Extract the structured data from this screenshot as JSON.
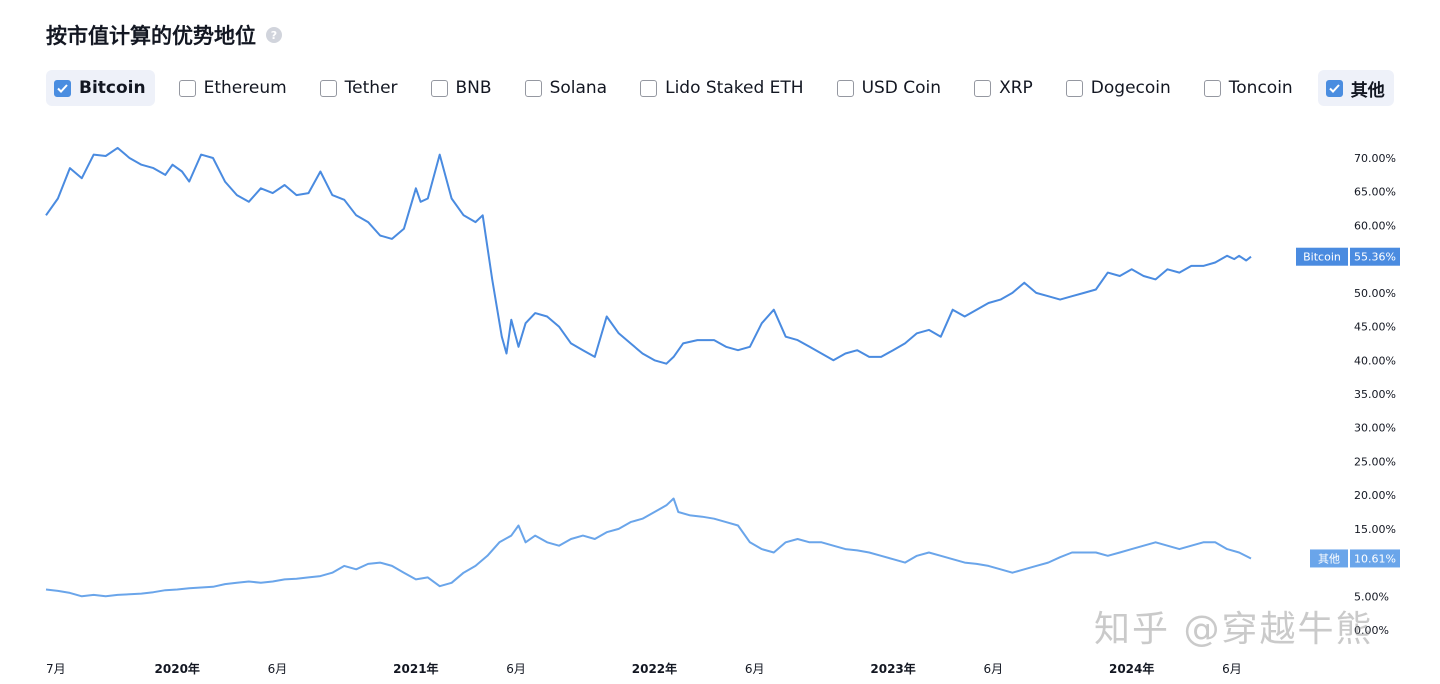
{
  "header": {
    "title": "按市值计算的优势地位",
    "help_icon": "?"
  },
  "legend": {
    "items": [
      {
        "label": "Bitcoin",
        "checked": true
      },
      {
        "label": "Ethereum",
        "checked": false
      },
      {
        "label": "Tether",
        "checked": false
      },
      {
        "label": "BNB",
        "checked": false
      },
      {
        "label": "Solana",
        "checked": false
      },
      {
        "label": "Lido Staked ETH",
        "checked": false
      },
      {
        "label": "USD Coin",
        "checked": false
      },
      {
        "label": "XRP",
        "checked": false
      },
      {
        "label": "Dogecoin",
        "checked": false
      },
      {
        "label": "Toncoin",
        "checked": false
      },
      {
        "label": "其他",
        "checked": true
      }
    ]
  },
  "watermark": "知乎 @穿越牛熊",
  "chart_data": {
    "type": "line",
    "title": "按市值计算的优势地位",
    "x_start": 2019.45,
    "x_end": 2024.5,
    "y_range": [
      0.0,
      70.0
    ],
    "y_ticks": [
      "70.00%",
      "65.00%",
      "60.00%",
      "55.00%",
      "50.00%",
      "45.00%",
      "40.00%",
      "35.00%",
      "30.00%",
      "25.00%",
      "20.00%",
      "15.00%",
      "10.00%",
      "5.00%",
      "0.00%"
    ],
    "x_ticks": [
      {
        "label": "7月",
        "t": 2019.5,
        "year": false
      },
      {
        "label": "2020年",
        "t": 2020.0,
        "year": true
      },
      {
        "label": "6月",
        "t": 2020.42,
        "year": false
      },
      {
        "label": "2021年",
        "t": 2021.0,
        "year": true
      },
      {
        "label": "6月",
        "t": 2021.42,
        "year": false
      },
      {
        "label": "2022年",
        "t": 2022.0,
        "year": true
      },
      {
        "label": "6月",
        "t": 2022.42,
        "year": false
      },
      {
        "label": "2023年",
        "t": 2023.0,
        "year": true
      },
      {
        "label": "6月",
        "t": 2023.42,
        "year": false
      },
      {
        "label": "2024年",
        "t": 2024.0,
        "year": true
      },
      {
        "label": "6月",
        "t": 2024.42,
        "year": false
      }
    ],
    "series": [
      {
        "name": "Bitcoin",
        "color": "#4a8be0",
        "last_value_label": "55.36%",
        "points": [
          [
            2019.45,
            61.5
          ],
          [
            2019.5,
            64.0
          ],
          [
            2019.55,
            68.5
          ],
          [
            2019.6,
            67.0
          ],
          [
            2019.65,
            70.5
          ],
          [
            2019.7,
            70.3
          ],
          [
            2019.75,
            71.5
          ],
          [
            2019.8,
            70.0
          ],
          [
            2019.85,
            69.0
          ],
          [
            2019.9,
            68.5
          ],
          [
            2019.95,
            67.5
          ],
          [
            2019.98,
            69.0
          ],
          [
            2020.02,
            68.0
          ],
          [
            2020.05,
            66.5
          ],
          [
            2020.1,
            70.5
          ],
          [
            2020.15,
            70.0
          ],
          [
            2020.2,
            66.5
          ],
          [
            2020.25,
            64.5
          ],
          [
            2020.3,
            63.5
          ],
          [
            2020.35,
            65.5
          ],
          [
            2020.4,
            64.8
          ],
          [
            2020.45,
            66.0
          ],
          [
            2020.5,
            64.5
          ],
          [
            2020.55,
            64.8
          ],
          [
            2020.6,
            68.0
          ],
          [
            2020.65,
            64.5
          ],
          [
            2020.7,
            63.8
          ],
          [
            2020.75,
            61.5
          ],
          [
            2020.8,
            60.5
          ],
          [
            2020.85,
            58.5
          ],
          [
            2020.9,
            58.0
          ],
          [
            2020.95,
            59.5
          ],
          [
            2021.0,
            65.5
          ],
          [
            2021.02,
            63.5
          ],
          [
            2021.05,
            64.0
          ],
          [
            2021.1,
            70.5
          ],
          [
            2021.15,
            64.0
          ],
          [
            2021.2,
            61.5
          ],
          [
            2021.25,
            60.5
          ],
          [
            2021.28,
            61.5
          ],
          [
            2021.32,
            52.0
          ],
          [
            2021.36,
            43.5
          ],
          [
            2021.38,
            41.0
          ],
          [
            2021.4,
            46.0
          ],
          [
            2021.43,
            42.0
          ],
          [
            2021.46,
            45.5
          ],
          [
            2021.5,
            47.0
          ],
          [
            2021.55,
            46.5
          ],
          [
            2021.6,
            45.0
          ],
          [
            2021.65,
            42.5
          ],
          [
            2021.7,
            41.5
          ],
          [
            2021.75,
            40.5
          ],
          [
            2021.8,
            46.5
          ],
          [
            2021.85,
            44.0
          ],
          [
            2021.9,
            42.5
          ],
          [
            2021.95,
            41.0
          ],
          [
            2022.0,
            40.0
          ],
          [
            2022.05,
            39.5
          ],
          [
            2022.08,
            40.5
          ],
          [
            2022.12,
            42.5
          ],
          [
            2022.18,
            43.0
          ],
          [
            2022.25,
            43.0
          ],
          [
            2022.3,
            42.0
          ],
          [
            2022.35,
            41.5
          ],
          [
            2022.4,
            42.0
          ],
          [
            2022.45,
            45.5
          ],
          [
            2022.5,
            47.5
          ],
          [
            2022.55,
            43.5
          ],
          [
            2022.6,
            43.0
          ],
          [
            2022.65,
            42.0
          ],
          [
            2022.7,
            41.0
          ],
          [
            2022.75,
            40.0
          ],
          [
            2022.8,
            41.0
          ],
          [
            2022.85,
            41.5
          ],
          [
            2022.9,
            40.5
          ],
          [
            2022.95,
            40.5
          ],
          [
            2023.0,
            41.5
          ],
          [
            2023.05,
            42.5
          ],
          [
            2023.1,
            44.0
          ],
          [
            2023.15,
            44.5
          ],
          [
            2023.2,
            43.5
          ],
          [
            2023.25,
            47.5
          ],
          [
            2023.3,
            46.5
          ],
          [
            2023.35,
            47.5
          ],
          [
            2023.4,
            48.5
          ],
          [
            2023.45,
            49.0
          ],
          [
            2023.5,
            50.0
          ],
          [
            2023.55,
            51.5
          ],
          [
            2023.6,
            50.0
          ],
          [
            2023.65,
            49.5
          ],
          [
            2023.7,
            49.0
          ],
          [
            2023.75,
            49.5
          ],
          [
            2023.8,
            50.0
          ],
          [
            2023.85,
            50.5
          ],
          [
            2023.9,
            53.0
          ],
          [
            2023.95,
            52.5
          ],
          [
            2024.0,
            53.5
          ],
          [
            2024.05,
            52.5
          ],
          [
            2024.1,
            52.0
          ],
          [
            2024.15,
            53.5
          ],
          [
            2024.2,
            53.0
          ],
          [
            2024.25,
            54.0
          ],
          [
            2024.3,
            54.0
          ],
          [
            2024.35,
            54.5
          ],
          [
            2024.4,
            55.5
          ],
          [
            2024.43,
            55.0
          ],
          [
            2024.45,
            55.5
          ],
          [
            2024.48,
            54.8
          ],
          [
            2024.5,
            55.36
          ]
        ]
      },
      {
        "name": "其他",
        "color": "#6aa5ea",
        "last_value_label": "10.61%",
        "points": [
          [
            2019.45,
            6.0
          ],
          [
            2019.5,
            5.8
          ],
          [
            2019.55,
            5.5
          ],
          [
            2019.6,
            5.0
          ],
          [
            2019.65,
            5.2
          ],
          [
            2019.7,
            5.0
          ],
          [
            2019.75,
            5.2
          ],
          [
            2019.8,
            5.3
          ],
          [
            2019.85,
            5.4
          ],
          [
            2019.9,
            5.6
          ],
          [
            2019.95,
            5.9
          ],
          [
            2020.0,
            6.0
          ],
          [
            2020.05,
            6.2
          ],
          [
            2020.1,
            6.3
          ],
          [
            2020.15,
            6.4
          ],
          [
            2020.2,
            6.8
          ],
          [
            2020.25,
            7.0
          ],
          [
            2020.3,
            7.2
          ],
          [
            2020.35,
            7.0
          ],
          [
            2020.4,
            7.2
          ],
          [
            2020.45,
            7.5
          ],
          [
            2020.5,
            7.6
          ],
          [
            2020.55,
            7.8
          ],
          [
            2020.6,
            8.0
          ],
          [
            2020.65,
            8.5
          ],
          [
            2020.7,
            9.5
          ],
          [
            2020.75,
            9.0
          ],
          [
            2020.8,
            9.8
          ],
          [
            2020.85,
            10.0
          ],
          [
            2020.9,
            9.5
          ],
          [
            2020.95,
            8.5
          ],
          [
            2021.0,
            7.5
          ],
          [
            2021.05,
            7.8
          ],
          [
            2021.1,
            6.5
          ],
          [
            2021.15,
            7.0
          ],
          [
            2021.2,
            8.5
          ],
          [
            2021.25,
            9.5
          ],
          [
            2021.3,
            11.0
          ],
          [
            2021.35,
            13.0
          ],
          [
            2021.4,
            14.0
          ],
          [
            2021.43,
            15.5
          ],
          [
            2021.46,
            13.0
          ],
          [
            2021.5,
            14.0
          ],
          [
            2021.55,
            13.0
          ],
          [
            2021.6,
            12.5
          ],
          [
            2021.65,
            13.5
          ],
          [
            2021.7,
            14.0
          ],
          [
            2021.75,
            13.5
          ],
          [
            2021.8,
            14.5
          ],
          [
            2021.85,
            15.0
          ],
          [
            2021.9,
            16.0
          ],
          [
            2021.95,
            16.5
          ],
          [
            2022.0,
            17.5
          ],
          [
            2022.05,
            18.5
          ],
          [
            2022.08,
            19.5
          ],
          [
            2022.1,
            17.5
          ],
          [
            2022.15,
            17.0
          ],
          [
            2022.2,
            16.8
          ],
          [
            2022.25,
            16.5
          ],
          [
            2022.3,
            16.0
          ],
          [
            2022.35,
            15.5
          ],
          [
            2022.4,
            13.0
          ],
          [
            2022.45,
            12.0
          ],
          [
            2022.5,
            11.5
          ],
          [
            2022.55,
            13.0
          ],
          [
            2022.6,
            13.5
          ],
          [
            2022.65,
            13.0
          ],
          [
            2022.7,
            13.0
          ],
          [
            2022.75,
            12.5
          ],
          [
            2022.8,
            12.0
          ],
          [
            2022.85,
            11.8
          ],
          [
            2022.9,
            11.5
          ],
          [
            2022.95,
            11.0
          ],
          [
            2023.0,
            10.5
          ],
          [
            2023.05,
            10.0
          ],
          [
            2023.1,
            11.0
          ],
          [
            2023.15,
            11.5
          ],
          [
            2023.2,
            11.0
          ],
          [
            2023.25,
            10.5
          ],
          [
            2023.3,
            10.0
          ],
          [
            2023.35,
            9.8
          ],
          [
            2023.4,
            9.5
          ],
          [
            2023.45,
            9.0
          ],
          [
            2023.5,
            8.5
          ],
          [
            2023.55,
            9.0
          ],
          [
            2023.6,
            9.5
          ],
          [
            2023.65,
            10.0
          ],
          [
            2023.7,
            10.8
          ],
          [
            2023.75,
            11.5
          ],
          [
            2023.8,
            11.5
          ],
          [
            2023.85,
            11.5
          ],
          [
            2023.9,
            11.0
          ],
          [
            2023.95,
            11.5
          ],
          [
            2024.0,
            12.0
          ],
          [
            2024.05,
            12.5
          ],
          [
            2024.1,
            13.0
          ],
          [
            2024.15,
            12.5
          ],
          [
            2024.2,
            12.0
          ],
          [
            2024.25,
            12.5
          ],
          [
            2024.3,
            13.0
          ],
          [
            2024.35,
            13.0
          ],
          [
            2024.4,
            12.0
          ],
          [
            2024.45,
            11.5
          ],
          [
            2024.5,
            10.61
          ]
        ]
      }
    ]
  }
}
